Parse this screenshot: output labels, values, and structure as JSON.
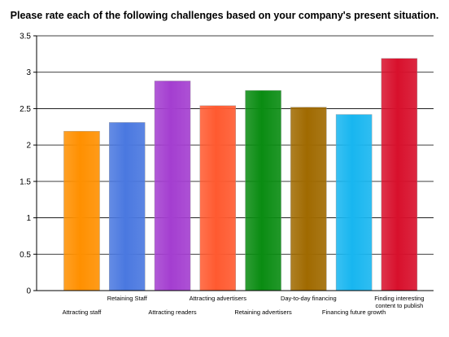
{
  "chart_data": {
    "type": "bar",
    "title": "Please rate each of the following challenges based on your company's present situation.",
    "xlabel": "",
    "ylabel": "",
    "ylim": [
      0,
      3.5
    ],
    "yticks": [
      "0",
      "0.5",
      "1",
      "1.5",
      "2",
      "2.5",
      "3",
      "3.5"
    ],
    "grid": true,
    "legend": "none",
    "categories": [
      [
        "Attracting staff"
      ],
      [
        "Retaining Staff"
      ],
      [
        "Attracting readers"
      ],
      [
        "Attracting advertisers"
      ],
      [
        "Retaining advertisers"
      ],
      [
        "Day-to-day financing"
      ],
      [
        "Financing future growth"
      ],
      [
        "Finding interesting",
        "content to publish"
      ]
    ],
    "values": [
      2.19,
      2.31,
      2.88,
      2.54,
      2.75,
      2.52,
      2.42,
      3.19
    ],
    "colors": [
      "#ff9000",
      "#4a78e0",
      "#a43ed0",
      "#ff5a30",
      "#0a8c12",
      "#a06a00",
      "#18b6f0",
      "#d8102c"
    ]
  }
}
